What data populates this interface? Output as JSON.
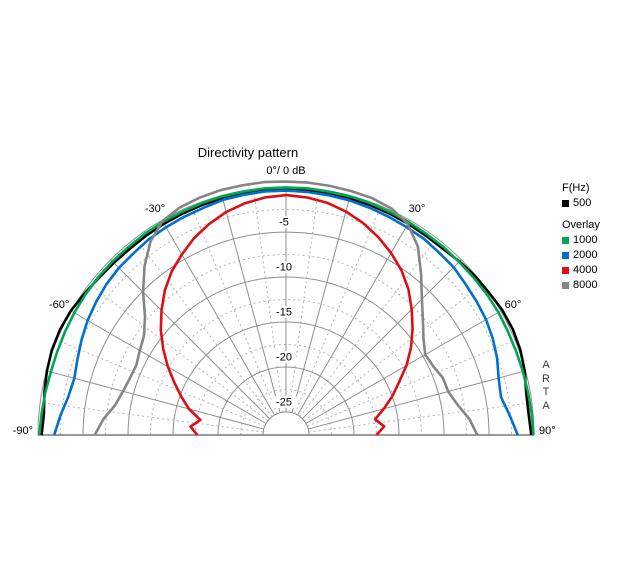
{
  "title": "Directivity pattern",
  "watermark": "A\nR\nT\nA",
  "legend": {
    "frequency_header": "F(Hz)",
    "overlay_header": "Overlay"
  },
  "chart_data": {
    "type": "polar_half_directivity",
    "title": "Directivity pattern",
    "units": "dB",
    "normalization_label": "0°/ 0 dB",
    "db_max": 0,
    "db_min": -25,
    "ring_step_solid_db": 5,
    "ring_step_dashed_db": 2.5,
    "radial_step_solid_deg": 15,
    "radial_step_dashed_deg": 7.5,
    "angle_min_deg": -90,
    "angle_max_deg": 90,
    "grid": true,
    "db_axis_labels": [
      {
        "db": -5,
        "text": "-5"
      },
      {
        "db": -10,
        "text": "-10"
      },
      {
        "db": -15,
        "text": "-15"
      },
      {
        "db": -20,
        "text": "-20"
      },
      {
        "db": -25,
        "text": "-25"
      }
    ],
    "angle_labels": [
      {
        "deg": 0,
        "text": "0°/ 0 dB"
      },
      {
        "deg": -30,
        "text": "-30°"
      },
      {
        "deg": 30,
        "text": "30°"
      },
      {
        "deg": -60,
        "text": "-60°"
      },
      {
        "deg": 60,
        "text": "60°"
      },
      {
        "deg": -90,
        "text": "-90°"
      },
      {
        "deg": 90,
        "text": "90°"
      }
    ],
    "angles_deg": [
      -90,
      -85,
      -80,
      -75,
      -70,
      -65,
      -60,
      -55,
      -50,
      -45,
      -40,
      -35,
      -30,
      -25,
      -20,
      -15,
      -10,
      -5,
      0,
      5,
      10,
      15,
      20,
      25,
      30,
      35,
      40,
      45,
      50,
      55,
      60,
      65,
      70,
      75,
      80,
      85,
      90
    ],
    "series": [
      {
        "name": "500",
        "role": "primary",
        "color": "#000000",
        "values_db": [
          -0.4,
          -0.55,
          -0.3,
          -0.05,
          0.12,
          0.15,
          0.05,
          -0.2,
          -0.4,
          -0.5,
          -0.55,
          -0.5,
          -0.45,
          -0.4,
          -0.35,
          -0.3,
          -0.3,
          -0.25,
          -0.25,
          -0.25,
          -0.3,
          -0.3,
          -0.35,
          -0.4,
          -0.45,
          -0.5,
          -0.5,
          -0.3,
          -0.1,
          0.0,
          0.2,
          0.25,
          0.15,
          -0.1,
          -0.45,
          -0.5,
          -0.3
        ]
      },
      {
        "name": "1000",
        "role": "overlay",
        "color": "#00a651",
        "values_db": [
          -0.15,
          -0.3,
          -0.4,
          -0.5,
          -0.5,
          -0.45,
          -0.4,
          -0.35,
          -0.3,
          -0.3,
          -0.3,
          -0.25,
          -0.2,
          -0.2,
          -0.15,
          -0.1,
          -0.1,
          -0.05,
          -0.05,
          -0.05,
          -0.1,
          -0.1,
          -0.15,
          -0.2,
          -0.25,
          -0.3,
          -0.3,
          -0.35,
          -0.35,
          -0.3,
          -0.3,
          -0.35,
          -0.35,
          -0.3,
          -0.25,
          -0.15,
          -0.05
        ]
      },
      {
        "name": "2000",
        "role": "overlay",
        "color": "#0070d0",
        "values_db": [
          -1.8,
          -2.4,
          -3.0,
          -3.2,
          -2.9,
          -2.5,
          -2.1,
          -1.8,
          -1.5,
          -1.3,
          -1.2,
          -1.0,
          -0.9,
          -0.8,
          -0.7,
          -0.5,
          -0.45,
          -0.4,
          -0.4,
          -0.45,
          -0.5,
          -0.55,
          -0.65,
          -0.75,
          -0.85,
          -0.9,
          -1.1,
          -1.2,
          -1.5,
          -1.7,
          -1.9,
          -2.2,
          -2.6,
          -3.1,
          -3.3,
          -2.6,
          -1.8
        ]
      },
      {
        "name": "4000",
        "role": "overlay",
        "color": "#dc0f14",
        "values_db": [
          -17.7,
          -16.9,
          -17.9,
          -16.4,
          -15.2,
          -13.9,
          -12.4,
          -10.9,
          -9.4,
          -8.0,
          -6.6,
          -5.4,
          -4.4,
          -3.4,
          -2.6,
          -1.9,
          -1.4,
          -1.05,
          -0.9,
          -1.05,
          -1.35,
          -1.85,
          -2.5,
          -3.3,
          -4.2,
          -5.2,
          -6.4,
          -7.8,
          -9.2,
          -10.6,
          -12.1,
          -13.7,
          -15.0,
          -16.3,
          -17.5,
          -16.6,
          -17.5
        ]
      },
      {
        "name": "8000",
        "role": "overlay",
        "color": "#858585",
        "values_db": [
          -6.3,
          -7.2,
          -8.3,
          -8.8,
          -9.1,
          -9.2,
          -8.8,
          -8.3,
          -7.1,
          -5.1,
          -3.1,
          -1.3,
          -0.1,
          0.35,
          0.5,
          0.6,
          0.6,
          0.65,
          0.6,
          0.6,
          0.55,
          0.5,
          0.45,
          0.2,
          -0.5,
          -2.0,
          -4.2,
          -6.2,
          -7.7,
          -8.9,
          -9.7,
          -9.5,
          -9.0,
          -8.9,
          -8.2,
          -7.1,
          -6.3
        ]
      }
    ]
  }
}
